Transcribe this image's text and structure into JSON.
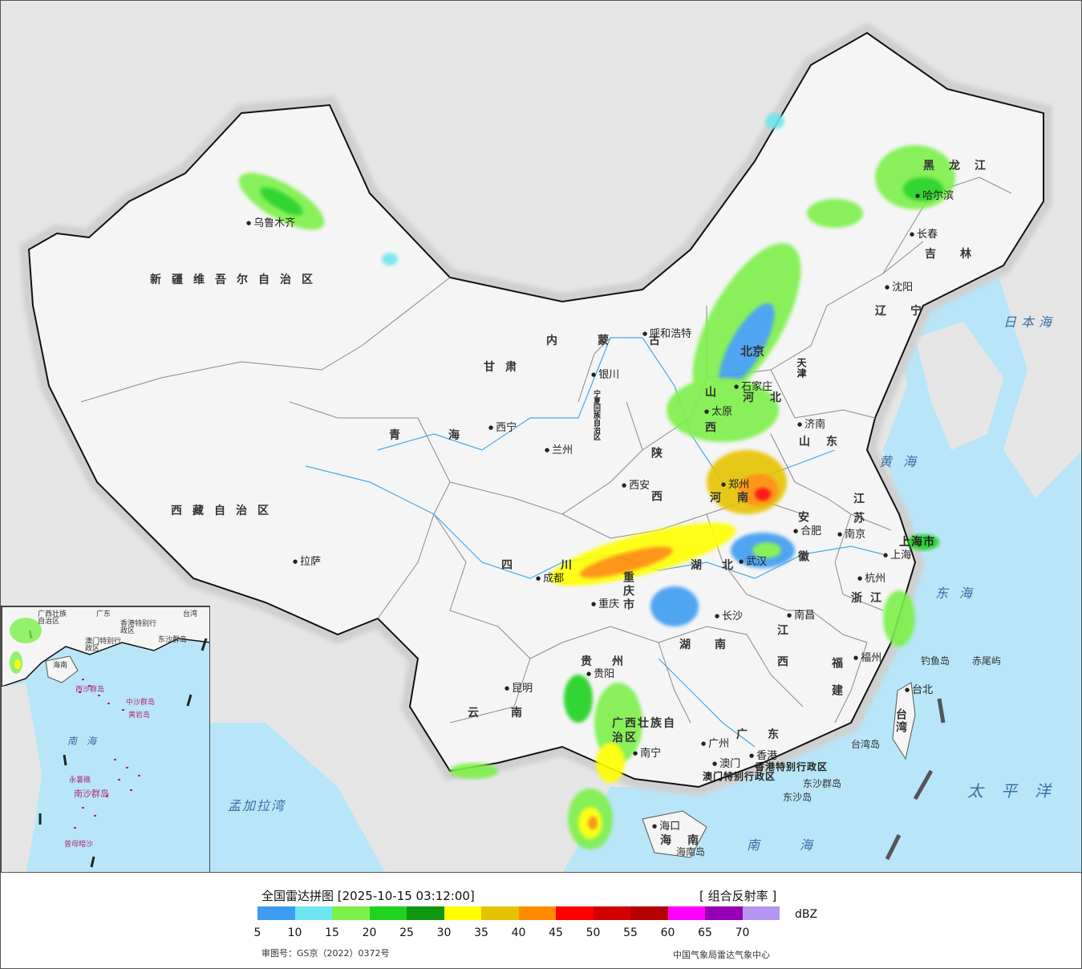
{
  "map": {
    "province_labels": [
      "新疆维吾尔自治区",
      "西藏自治区",
      "青海",
      "甘肃",
      "内蒙古",
      "黑龙江",
      "吉林",
      "辽宁",
      "河北",
      "山西",
      "陕西",
      "河南",
      "山东",
      "江苏",
      "安徽",
      "湖北",
      "四川",
      "重庆市",
      "湖南",
      "江西",
      "浙江",
      "福建",
      "贵州",
      "云南",
      "广西壮族自治区",
      "广东",
      "海南",
      "台湾",
      "宁夏回族自治区",
      "北京",
      "天津",
      "上海市",
      "香港特别行政区",
      "澳门特别行政区"
    ],
    "cities": [
      "乌鲁木齐",
      "拉萨",
      "西宁",
      "兰州",
      "银川",
      "呼和浩特",
      "哈尔滨",
      "长春",
      "沈阳",
      "石家庄",
      "太原",
      "济南",
      "郑州",
      "西安",
      "合肥",
      "南京",
      "上海",
      "杭州",
      "武汉",
      "成都",
      "重庆",
      "长沙",
      "南昌",
      "福州",
      "台北",
      "贵阳",
      "昆明",
      "南宁",
      "广州",
      "香港",
      "澳门",
      "海口"
    ],
    "seas": [
      "日本海",
      "黄海",
      "东海",
      "南海",
      "太平洋",
      "孟加拉湾"
    ],
    "islands": [
      "钓鱼岛",
      "赤尾屿",
      "台湾岛",
      "东沙群岛",
      "东沙岛",
      "海南岛"
    ],
    "inset_labels": [
      "广西壮族自治区",
      "广东",
      "台湾",
      "澳门特别行政区",
      "香港特别行政区",
      "东沙群岛",
      "海南",
      "西沙群岛",
      "中沙群岛",
      "黄岩岛",
      "南海",
      "永暑礁",
      "南沙群岛",
      "曾母暗沙"
    ]
  },
  "legend": {
    "title": "全国雷达拼图 [2025-10-15 03:12:00]",
    "product": "[ 组合反射率 ]",
    "unit": "dBZ",
    "ticks": [
      "5",
      "10",
      "15",
      "20",
      "25",
      "30",
      "35",
      "40",
      "45",
      "50",
      "55",
      "60",
      "65",
      "70"
    ],
    "colors": [
      "#3c9cf0",
      "#6ee6f0",
      "#7cf04a",
      "#1ed21e",
      "#119611",
      "#ffff00",
      "#e6c300",
      "#ff8c00",
      "#ff0000",
      "#d20000",
      "#b40000",
      "#ff00ff",
      "#9600b4",
      "#b496f0"
    ],
    "approval_number": "审图号：GS京（2022）0372号",
    "agency": "中国气象局雷达气象中心"
  }
}
